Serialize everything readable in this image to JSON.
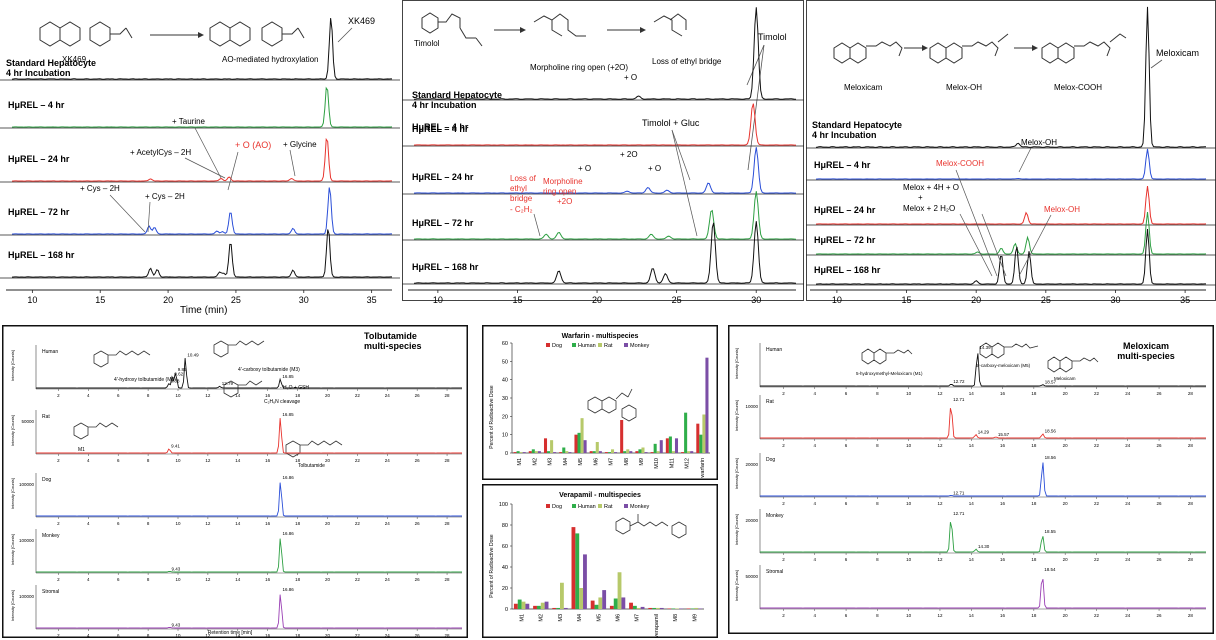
{
  "colors": {
    "black": "#111111",
    "red": "#e8342e",
    "blue": "#2b4fd8",
    "green": "#2ea043",
    "purple": "#9a3fb4",
    "dog": "#d62f2f",
    "human": "#2fae4a",
    "rat": "#b7c96a",
    "monkey": "#7b4ea6"
  },
  "chart_data": [
    {
      "type": "line",
      "panel": "xk469",
      "title": "",
      "compound": "XK469",
      "reaction_label": "AO-mediated hydroxylation",
      "peak_label": "XK469",
      "xlabel": "Time (min)",
      "xlim": [
        8.5,
        36.5
      ],
      "xticks": [
        10,
        15,
        20,
        25,
        30,
        35
      ],
      "lanes": [
        {
          "name": "Standard Hepatocyte 4 hr Incubation",
          "color": "black",
          "peaks": [
            [
              32,
              1.0
            ]
          ]
        },
        {
          "name": "HμREL – 4 hr",
          "color": "green",
          "peaks": [
            [
              31.7,
              1.0
            ]
          ]
        },
        {
          "name": "HμREL – 24 hr",
          "color": "red",
          "peaks": [
            [
              18.7,
              0.05
            ],
            [
              23.9,
              0.06
            ],
            [
              24.5,
              0.09
            ],
            [
              29.1,
              0.06
            ],
            [
              31.7,
              1.0
            ]
          ]
        },
        {
          "name": "HμREL – 72 hr",
          "color": "blue",
          "peaks": [
            [
              18.6,
              0.17
            ],
            [
              19.0,
              0.14
            ],
            [
              23.6,
              0.06
            ],
            [
              24.0,
              0.05
            ],
            [
              24.6,
              0.48
            ],
            [
              29.2,
              0.12
            ],
            [
              31.9,
              1.0
            ]
          ]
        },
        {
          "name": "HμREL – 168 hr",
          "color": "black",
          "peaks": [
            [
              18.7,
              0.18
            ],
            [
              19.2,
              0.15
            ],
            [
              23.8,
              0.1
            ],
            [
              24.1,
              0.07
            ],
            [
              24.6,
              0.72
            ],
            [
              29.2,
              0.14
            ],
            [
              31.8,
              1.0
            ]
          ]
        }
      ],
      "annotations": [
        {
          "text": "+ Taurine",
          "color": "black"
        },
        {
          "text": "+ AcetylCys – 2H",
          "color": "black"
        },
        {
          "text": "+ O (AO)",
          "color": "red"
        },
        {
          "text": "+ Glycine",
          "color": "black"
        },
        {
          "text": "+ Cys – 2H",
          "color": "black"
        },
        {
          "text": "+ Cys – 2H",
          "color": "black"
        }
      ]
    },
    {
      "type": "line",
      "panel": "timolol",
      "title": "",
      "compounds": [
        "Timolol",
        "Morpholine ring open (+2O)",
        "Loss of ethyl bridge"
      ],
      "peak_label": "Timolol",
      "xlabel": "",
      "xlim": [
        8.5,
        32.5
      ],
      "xticks": [
        10,
        15,
        20,
        25,
        30
      ],
      "lanes": [
        {
          "name": "Standard Hepatocyte 4 hr Incubation",
          "color": "black",
          "peaks": [
            [
              22.6,
              0.03
            ],
            [
              30.0,
              1.0
            ]
          ]
        },
        {
          "name": "HμREL – 4 hr",
          "color": "red",
          "peaks": [
            [
              29.8,
              1.0
            ]
          ]
        },
        {
          "name": "HμREL – 24 hr",
          "color": "blue",
          "peaks": [
            [
              21.9,
              0.04
            ],
            [
              23.2,
              0.12
            ],
            [
              24.4,
              0.06
            ],
            [
              27.0,
              0.22
            ],
            [
              30.0,
              1.0
            ]
          ]
        },
        {
          "name": "HμREL – 72 hr",
          "color": "green",
          "peaks": [
            [
              16.8,
              0.1
            ],
            [
              17.6,
              0.14
            ],
            [
              23.4,
              0.1
            ],
            [
              24.5,
              0.06
            ],
            [
              27.2,
              0.62
            ],
            [
              30.0,
              1.0
            ]
          ]
        },
        {
          "name": "HμREL – 168 hr",
          "color": "black",
          "peaks": [
            [
              17.6,
              0.2
            ],
            [
              23.5,
              0.24
            ],
            [
              24.3,
              0.15
            ],
            [
              27.3,
              1.0
            ],
            [
              30.0,
              1.0
            ]
          ]
        }
      ],
      "annotations": [
        {
          "text": "+ O",
          "color": "black"
        },
        {
          "text": "Timolol",
          "color": "black"
        },
        {
          "text": "Timolol + Gluc",
          "color": "black"
        },
        {
          "text": "+ 2O",
          "color": "black"
        },
        {
          "text": "+ O",
          "color": "black"
        },
        {
          "text": "+ O",
          "color": "black"
        },
        {
          "text": "Loss of ethyl bridge - C₂H₂",
          "color": "red"
        },
        {
          "text": "Morpholine ring open +2O",
          "color": "red"
        }
      ]
    },
    {
      "type": "line",
      "panel": "meloxicam",
      "title": "",
      "compounds": [
        "Meloxicam",
        "Melox-OH",
        "Melox-COOH"
      ],
      "peak_label": "Meloxicam",
      "xlabel": "",
      "xlim": [
        8.5,
        36.5
      ],
      "xticks": [
        10,
        15,
        20,
        25,
        30,
        35
      ],
      "lanes": [
        {
          "name": "Standard Hepatocyte 4 hr Incubation",
          "color": "black",
          "peaks": [
            [
              23.0,
              0.03
            ],
            [
              32.3,
              1.0
            ]
          ]
        },
        {
          "name": "HμREL – 4 hr",
          "color": "blue",
          "peaks": [
            [
              23.0,
              0.02
            ],
            [
              32.3,
              1.0
            ]
          ]
        },
        {
          "name": "HμREL – 24 hr",
          "color": "red",
          "peaks": [
            [
              23.6,
              0.3
            ],
            [
              32.3,
              1.0
            ]
          ]
        },
        {
          "name": "HμREL – 72 hr",
          "color": "green",
          "peaks": [
            [
              20.1,
              0.05
            ],
            [
              21.8,
              0.14
            ],
            [
              22.8,
              0.25
            ],
            [
              23.7,
              0.4
            ],
            [
              32.3,
              1.0
            ]
          ]
        },
        {
          "name": "HμREL – 168 hr",
          "color": "black",
          "peaks": [
            [
              20.0,
              0.06
            ],
            [
              21.8,
              0.55
            ],
            [
              22.9,
              0.7
            ],
            [
              23.8,
              0.6
            ],
            [
              32.3,
              1.0
            ]
          ]
        }
      ],
      "annotations": [
        {
          "text": "Melox-OH",
          "color": "black"
        },
        {
          "text": "Melox-COOH",
          "color": "red"
        },
        {
          "text": "Melox + 4H + O",
          "color": "black"
        },
        {
          "text": "+",
          "color": "black"
        },
        {
          "text": "Melox + 2 H₂O",
          "color": "black"
        },
        {
          "text": "Melox-OH",
          "color": "red"
        }
      ]
    },
    {
      "type": "line",
      "panel": "tolbutamide",
      "title": "Tolbutamide multi-species",
      "xlabel": "Retention time [min]",
      "ylabel": "Intensity [Counts]",
      "xlim": [
        0.5,
        29
      ],
      "xticks": [
        2,
        4,
        6,
        8,
        10,
        12,
        14,
        16,
        18,
        20,
        22,
        24,
        26,
        28
      ],
      "lanes": [
        {
          "name": "Human",
          "color": "black",
          "ytick": "",
          "peaks": [
            [
              9.38,
              0.12
            ],
            [
              9.62,
              0.32
            ],
            [
              9.85,
              0.45
            ],
            [
              10.49,
              0.85
            ],
            [
              12.79,
              0.05
            ],
            [
              16.85,
              0.25
            ]
          ],
          "labels": [
            "9.38",
            "9.62",
            "9.85",
            "10.49",
            "12.79",
            "16.85"
          ]
        },
        {
          "name": "Rat",
          "color": "red",
          "ytick": "50000",
          "peaks": [
            [
              9.41,
              0.12
            ],
            [
              16.85,
              1.0
            ]
          ],
          "labels": [
            "9.41",
            "16.85"
          ]
        },
        {
          "name": "Dog",
          "color": "blue",
          "ytick": "100000",
          "peaks": [
            [
              16.86,
              1.0
            ]
          ],
          "labels": [
            "16.86"
          ]
        },
        {
          "name": "Monkey",
          "color": "green",
          "ytick": "100000",
          "peaks": [
            [
              9.43,
              0.02
            ],
            [
              16.86,
              1.0
            ]
          ],
          "labels": [
            "9.43",
            "16.86"
          ]
        },
        {
          "name": "Stromal",
          "color": "purple",
          "ytick": "100000",
          "peaks": [
            [
              9.43,
              0.02
            ],
            [
              16.86,
              1.0
            ]
          ],
          "labels": [
            "9.43",
            "16.86"
          ]
        }
      ],
      "structure_labels": [
        "4'-hydroxy tolbutamide (M2)",
        "4'-carboxy tolbutamide (M3)",
        "- H₂O + GSH",
        "C₂H₆N cleavage",
        "M1",
        "Tolbutamide"
      ]
    },
    {
      "type": "bar",
      "panel": "warfarin",
      "title": "Warfarin - multispecies",
      "ylabel": "Percent of Radioactive Dose",
      "ylim": [
        0,
        60
      ],
      "yticks": [
        0,
        10,
        20,
        30,
        40,
        50,
        60
      ],
      "categories": [
        "M1",
        "M2",
        "M3",
        "M4",
        "M5",
        "M6",
        "M7",
        "M8",
        "M9",
        "M10",
        "M11",
        "M12",
        "warfarin"
      ],
      "series": [
        {
          "name": "Dog",
          "color": "dog",
          "values": [
            0.5,
            1,
            8,
            0.5,
            10,
            1,
            0.5,
            18,
            1,
            0.5,
            8,
            0.5,
            16
          ]
        },
        {
          "name": "Human",
          "color": "human",
          "values": [
            1,
            2,
            1,
            3,
            11,
            1,
            0.5,
            1,
            2,
            5,
            9,
            22,
            10
          ]
        },
        {
          "name": "Rat",
          "color": "rat",
          "values": [
            0.5,
            1,
            7,
            1,
            19,
            6,
            2,
            2,
            3,
            1,
            1,
            1,
            21
          ]
        },
        {
          "name": "Monkey",
          "color": "monkey",
          "values": [
            0.5,
            1,
            0.5,
            0.5,
            7,
            1,
            0.5,
            1,
            0.5,
            7,
            8,
            1,
            52
          ]
        }
      ],
      "legend": "top"
    },
    {
      "type": "bar",
      "panel": "verapamil",
      "title": "Verapamil - multispecies",
      "ylabel": "Percent of Radioactive Dose",
      "ylim": [
        0,
        100
      ],
      "yticks": [
        0,
        20,
        40,
        60,
        80,
        100
      ],
      "categories": [
        "M1",
        "M2",
        "M3",
        "M4",
        "M5",
        "M6",
        "M7",
        "verapamil",
        "M8",
        "M9"
      ],
      "series": [
        {
          "name": "Dog",
          "color": "dog",
          "values": [
            5,
            3,
            1,
            78,
            8,
            3,
            6,
            1,
            0.5,
            0.5
          ]
        },
        {
          "name": "Human",
          "color": "human",
          "values": [
            9,
            3,
            1,
            72,
            4,
            10,
            3,
            1,
            0.5,
            0.5
          ]
        },
        {
          "name": "Rat",
          "color": "rat",
          "values": [
            7,
            6,
            25,
            20,
            11,
            35,
            1,
            1,
            0.5,
            1
          ]
        },
        {
          "name": "Monkey",
          "color": "monkey",
          "values": [
            5,
            7,
            1,
            52,
            18,
            11,
            2,
            1,
            0.5,
            0.5
          ]
        }
      ],
      "legend": "top"
    },
    {
      "type": "line",
      "panel": "meloxicam_multi",
      "title": "Meloxicam multi-species",
      "xlabel": "",
      "ylabel": "Intensity [Counts]",
      "xlim": [
        0.5,
        29
      ],
      "xticks": [
        2,
        4,
        6,
        8,
        10,
        12,
        14,
        16,
        18,
        20,
        22,
        24,
        26,
        28
      ],
      "lanes": [
        {
          "name": "Human",
          "color": "black",
          "ytick": "",
          "peaks": [
            [
              12.72,
              0.06
            ],
            [
              14.39,
              1.0
            ],
            [
              18.57,
              0.04
            ]
          ],
          "labels": [
            "12.72",
            "14.39",
            "18.57"
          ]
        },
        {
          "name": "Rat",
          "color": "red",
          "ytick": "10000",
          "peaks": [
            [
              12.71,
              1.0
            ],
            [
              14.29,
              0.1
            ],
            [
              15.57,
              0.03
            ],
            [
              18.56,
              0.12
            ]
          ],
          "labels": [
            "12.71",
            "14.29",
            "15.57",
            "18.56"
          ]
        },
        {
          "name": "Dog",
          "color": "blue",
          "ytick": "20000",
          "peaks": [
            [
              12.71,
              0.02
            ],
            [
              18.56,
              1.0
            ]
          ],
          "labels": [
            "12.71",
            "18.56"
          ]
        },
        {
          "name": "Monkey",
          "color": "green",
          "ytick": "20000",
          "peaks": [
            [
              12.71,
              1.0
            ],
            [
              14.3,
              0.08
            ],
            [
              18.55,
              0.5
            ]
          ],
          "labels": [
            "12.71",
            "14.30",
            "18.55"
          ]
        },
        {
          "name": "Stromal",
          "color": "purple",
          "ytick": "50000",
          "peaks": [
            [
              18.54,
              1.0
            ]
          ],
          "labels": [
            "18.54"
          ]
        }
      ],
      "structure_labels": [
        "5-hydroxymethyl-Meloxicam (M1)",
        "5'-carboxy-meloxicam (M5)",
        "Meloxicam"
      ]
    }
  ],
  "labels": {
    "std": "Standard Hepatocyte",
    "incub": "4 hr Incubation",
    "time_min": "Time (min)",
    "hrel4": "HμREL – 4 hr",
    "hrel24": "HμREL – 24 hr",
    "hrel72": "HμREL – 72 hr",
    "hrel168": "HμREL – 168 hr"
  }
}
